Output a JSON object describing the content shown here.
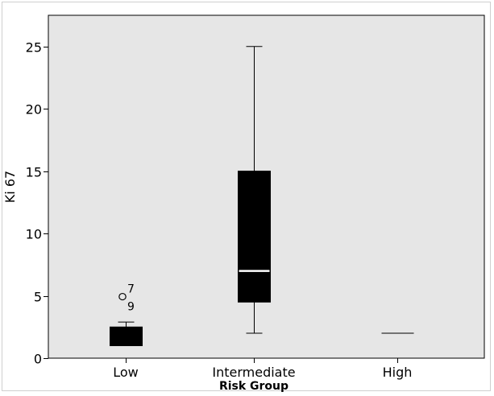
{
  "chart_data": {
    "type": "box",
    "title": "",
    "xlabel": "Risk Group",
    "ylabel": "Ki 67",
    "ylim": [
      0,
      27.5
    ],
    "yticks": [
      0,
      5,
      10,
      15,
      20,
      25
    ],
    "grid": false,
    "background_color": "#e6e6e6",
    "box_color": "#000000",
    "median_color": "#ffffff",
    "categories": [
      "Low",
      "Intermediate",
      "High"
    ],
    "boxes": [
      {
        "category": "Low",
        "whisker_low": 1,
        "q1": 1,
        "median": 1,
        "q3": 2.5,
        "whisker_high": 2.9
      },
      {
        "category": "Intermediate",
        "whisker_low": 2,
        "q1": 4.5,
        "median": 7,
        "q3": 15,
        "whisker_high": 25
      },
      {
        "category": "High",
        "whisker_low": 2,
        "q1": 2,
        "median": 2,
        "q3": 2,
        "whisker_high": 2
      }
    ],
    "outliers": [
      {
        "category": "Low",
        "y": 5,
        "marker": "o",
        "labels": [
          "7",
          "9"
        ]
      }
    ]
  }
}
